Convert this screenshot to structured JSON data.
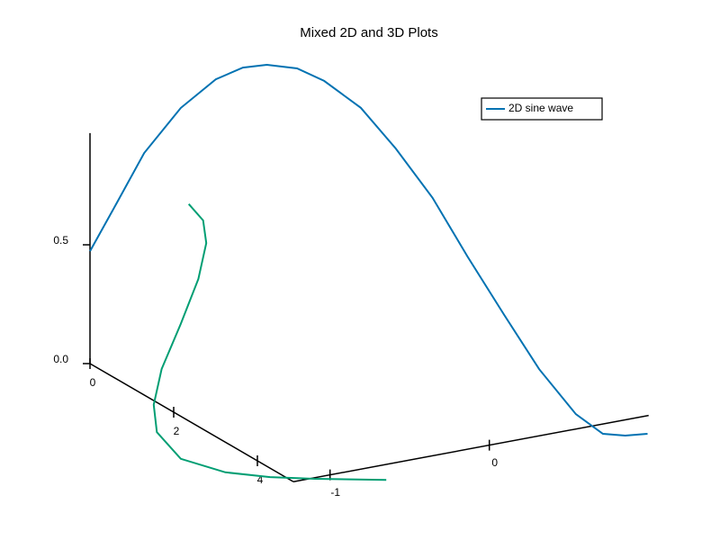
{
  "chart_data": {
    "type": "line3d",
    "title": "Mixed 2D and 3D Plots",
    "xlim": [
      0,
      4.86
    ],
    "xticks": [
      0,
      2,
      4
    ],
    "ylim": [
      -1.23,
      1.0
    ],
    "yticks": [
      -1,
      0
    ],
    "zlim": [
      0,
      0.97
    ],
    "zticks": [
      {
        "value": 0,
        "label": "0.0"
      },
      0.5
    ],
    "legend": "upper right",
    "series": [
      {
        "name": "2D sine wave",
        "color": "#0072b2",
        "y": [
          -1.23,
          -1.06,
          -0.89,
          -0.66,
          -0.44,
          -0.27,
          -0.12,
          0.07,
          0.24,
          0.47,
          0.69,
          0.92,
          1.14,
          1.37,
          1.59,
          1.82,
          1.99,
          2.13,
          2.27
        ],
        "values": [
          0.473,
          0.657,
          0.844,
          1.005,
          1.098,
          1.126,
          1.119,
          1.08,
          1.006,
          0.864,
          0.665,
          0.429,
          0.154,
          -0.12,
          -0.376,
          -0.594,
          -0.698,
          -0.723,
          -0.733
        ]
      },
      {
        "color": "#009e73",
        "y": [
          -0.61,
          -0.52,
          -0.5,
          -0.55,
          -0.66,
          -0.78,
          -0.83,
          -0.81,
          -0.66,
          -0.38,
          -0.1,
          0.18,
          0.63
        ],
        "values": [
          0.594,
          0.514,
          0.416,
          0.271,
          0.096,
          -0.079,
          -0.223,
          -0.341,
          -0.472,
          -0.564,
          -0.619,
          -0.661,
          -0.722
        ]
      }
    ]
  }
}
